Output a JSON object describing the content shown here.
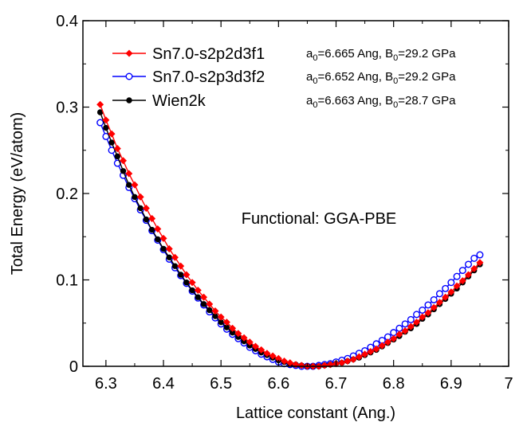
{
  "chart_data": {
    "type": "line",
    "xlabel": "Lattice constant (Ang.)",
    "ylabel": "Total Energy (eV/atom)",
    "xlim": [
      6.26,
      7.0
    ],
    "ylim": [
      0,
      0.4
    ],
    "xticks": [
      6.3,
      6.4,
      6.5,
      6.6,
      6.7,
      6.8,
      6.9,
      7
    ],
    "yticks": [
      0,
      0.1,
      0.2,
      0.3,
      0.4
    ],
    "xtick_labels": [
      "6.3",
      "6.4",
      "6.5",
      "6.6",
      "6.7",
      "6.8",
      "6.9",
      "7"
    ],
    "ytick_labels": [
      "0",
      "0.1",
      "0.2",
      "0.3",
      "0.4"
    ],
    "annotation": "Functional: GGA-PBE",
    "legend_position": "top-left",
    "grid": false,
    "series": [
      {
        "name": "Sn7.0-s2p2d3f1",
        "color": "#ff0000",
        "marker": "diamond-filled",
        "note": {
          "a_prefix": "a",
          "a_sub": "0",
          "a_value": "=6.665 Ang, ",
          "b_prefix": "B",
          "b_sub": "0",
          "b_value": "=29.2 GPa"
        },
        "x": [
          6.29,
          6.3,
          6.31,
          6.32,
          6.33,
          6.34,
          6.35,
          6.36,
          6.37,
          6.38,
          6.39,
          6.4,
          6.41,
          6.42,
          6.43,
          6.44,
          6.45,
          6.46,
          6.47,
          6.48,
          6.49,
          6.5,
          6.51,
          6.52,
          6.53,
          6.54,
          6.55,
          6.56,
          6.57,
          6.58,
          6.59,
          6.6,
          6.61,
          6.62,
          6.63,
          6.64,
          6.65,
          6.66,
          6.67,
          6.68,
          6.69,
          6.7,
          6.71,
          6.72,
          6.73,
          6.74,
          6.75,
          6.76,
          6.77,
          6.78,
          6.79,
          6.8,
          6.81,
          6.82,
          6.83,
          6.84,
          6.85,
          6.86,
          6.87,
          6.88,
          6.89,
          6.9,
          6.91,
          6.92,
          6.93,
          6.94,
          6.95
        ],
        "y": [
          0.303,
          0.285,
          0.269,
          0.252,
          0.238,
          0.223,
          0.21,
          0.196,
          0.183,
          0.171,
          0.159,
          0.148,
          0.136,
          0.126,
          0.116,
          0.106,
          0.097,
          0.088,
          0.08,
          0.072,
          0.064,
          0.057,
          0.051,
          0.044,
          0.038,
          0.033,
          0.028,
          0.023,
          0.019,
          0.015,
          0.012,
          0.009,
          0.006,
          0.004,
          0.002,
          0.001,
          0.0,
          0.0,
          0.0,
          0.001,
          0.002,
          0.003,
          0.004,
          0.006,
          0.008,
          0.011,
          0.014,
          0.017,
          0.02,
          0.024,
          0.028,
          0.032,
          0.037,
          0.041,
          0.046,
          0.051,
          0.057,
          0.062,
          0.068,
          0.074,
          0.08,
          0.086,
          0.093,
          0.099,
          0.106,
          0.113,
          0.12
        ]
      },
      {
        "name": "Sn7.0-s2p3d3f2",
        "color": "#0000ff",
        "marker": "circle-open",
        "note": {
          "a_prefix": "a",
          "a_sub": "0",
          "a_value": "=6.652 Ang, ",
          "b_prefix": "B",
          "b_sub": "0",
          "b_value": "=29.2 GPa"
        },
        "x": [
          6.29,
          6.3,
          6.31,
          6.32,
          6.33,
          6.34,
          6.35,
          6.36,
          6.37,
          6.38,
          6.39,
          6.4,
          6.41,
          6.42,
          6.43,
          6.44,
          6.45,
          6.46,
          6.47,
          6.48,
          6.49,
          6.5,
          6.51,
          6.52,
          6.53,
          6.54,
          6.55,
          6.56,
          6.57,
          6.58,
          6.59,
          6.6,
          6.61,
          6.62,
          6.63,
          6.64,
          6.65,
          6.66,
          6.67,
          6.68,
          6.69,
          6.7,
          6.71,
          6.72,
          6.73,
          6.74,
          6.75,
          6.76,
          6.77,
          6.78,
          6.79,
          6.8,
          6.81,
          6.82,
          6.83,
          6.84,
          6.85,
          6.86,
          6.87,
          6.88,
          6.89,
          6.9,
          6.91,
          6.92,
          6.93,
          6.94,
          6.95
        ],
        "y": [
          0.282,
          0.266,
          0.25,
          0.235,
          0.221,
          0.207,
          0.194,
          0.181,
          0.169,
          0.157,
          0.146,
          0.135,
          0.124,
          0.114,
          0.105,
          0.096,
          0.087,
          0.079,
          0.071,
          0.063,
          0.056,
          0.049,
          0.043,
          0.037,
          0.032,
          0.027,
          0.022,
          0.018,
          0.014,
          0.011,
          0.008,
          0.005,
          0.003,
          0.002,
          0.001,
          0.0,
          0.0,
          0.0,
          0.001,
          0.002,
          0.003,
          0.005,
          0.007,
          0.009,
          0.012,
          0.015,
          0.018,
          0.022,
          0.026,
          0.03,
          0.034,
          0.039,
          0.044,
          0.049,
          0.054,
          0.06,
          0.065,
          0.071,
          0.077,
          0.084,
          0.09,
          0.097,
          0.104,
          0.111,
          0.118,
          0.125,
          0.129
        ]
      },
      {
        "name": "Wien2k",
        "color": "#000000",
        "marker": "circle-filled",
        "note": {
          "a_prefix": "a",
          "a_sub": "0",
          "a_value": "=6.663 Ang, ",
          "b_prefix": "B",
          "b_sub": "0",
          "b_value": "=28.7 GPa"
        },
        "x": [
          6.29,
          6.3,
          6.31,
          6.32,
          6.33,
          6.34,
          6.35,
          6.36,
          6.37,
          6.38,
          6.39,
          6.4,
          6.41,
          6.42,
          6.43,
          6.44,
          6.45,
          6.46,
          6.47,
          6.48,
          6.49,
          6.5,
          6.51,
          6.52,
          6.53,
          6.54,
          6.55,
          6.56,
          6.57,
          6.58,
          6.59,
          6.6,
          6.61,
          6.62,
          6.63,
          6.64,
          6.65,
          6.66,
          6.67,
          6.68,
          6.69,
          6.7,
          6.71,
          6.72,
          6.73,
          6.74,
          6.75,
          6.76,
          6.77,
          6.78,
          6.79,
          6.8,
          6.81,
          6.82,
          6.83,
          6.84,
          6.85,
          6.86,
          6.87,
          6.88,
          6.89,
          6.9,
          6.91,
          6.92,
          6.93,
          6.94,
          6.95
        ],
        "y": [
          0.294,
          0.276,
          0.259,
          0.243,
          0.226,
          0.21,
          0.196,
          0.183,
          0.17,
          0.158,
          0.147,
          0.136,
          0.126,
          0.116,
          0.106,
          0.097,
          0.088,
          0.08,
          0.072,
          0.065,
          0.058,
          0.051,
          0.045,
          0.039,
          0.034,
          0.029,
          0.024,
          0.02,
          0.016,
          0.013,
          0.01,
          0.007,
          0.005,
          0.003,
          0.002,
          0.001,
          0.0,
          0.0,
          0.0,
          0.001,
          0.002,
          0.003,
          0.004,
          0.006,
          0.008,
          0.01,
          0.013,
          0.016,
          0.019,
          0.023,
          0.027,
          0.031,
          0.035,
          0.04,
          0.044,
          0.049,
          0.055,
          0.06,
          0.066,
          0.072,
          0.078,
          0.084,
          0.09,
          0.097,
          0.104,
          0.111,
          0.118
        ]
      }
    ]
  }
}
